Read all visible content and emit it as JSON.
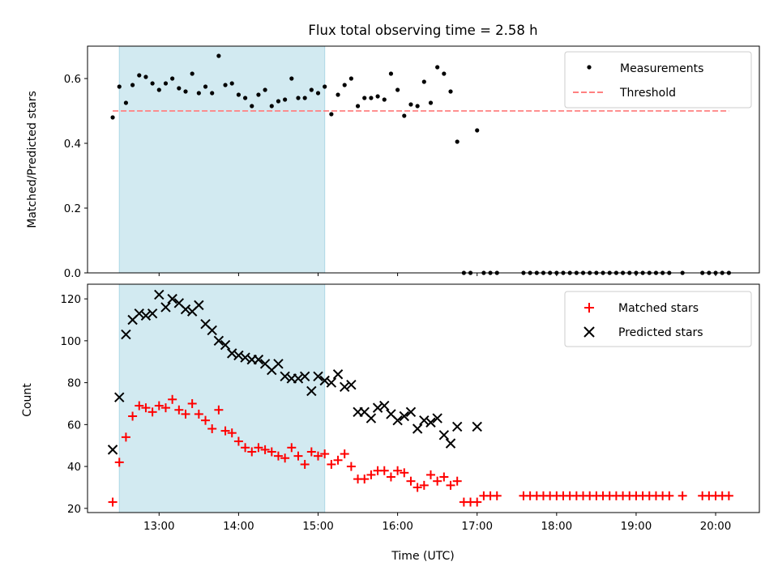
{
  "chart_data": [
    {
      "type": "scatter",
      "title": "Flux total observing time = 2.58 h",
      "xlabel": "",
      "ylabel": "Matched/Predicted stars",
      "ylim": [
        0,
        0.7
      ],
      "yticks": [
        0.0,
        0.2,
        0.4,
        0.6
      ],
      "ytick_labels": [
        "0.0",
        "0.2",
        "0.4",
        "0.6"
      ],
      "xlim": [
        "12:06",
        "20:33"
      ],
      "xticks": [
        "13:00",
        "14:00",
        "15:00",
        "16:00",
        "17:00",
        "18:00",
        "19:00",
        "20:00"
      ],
      "shaded_span": [
        "12:30",
        "15:05"
      ],
      "shaded_color": "#add8e6",
      "legend_position": "upper right",
      "series": [
        {
          "name": "Measurements",
          "marker": "dot",
          "color": "#000000",
          "x": [
            "12:25",
            "12:30",
            "12:35",
            "12:40",
            "12:45",
            "12:50",
            "12:55",
            "13:00",
            "13:05",
            "13:10",
            "13:15",
            "13:20",
            "13:25",
            "13:30",
            "13:35",
            "13:40",
            "13:45",
            "13:50",
            "13:55",
            "14:00",
            "14:05",
            "14:10",
            "14:15",
            "14:20",
            "14:25",
            "14:30",
            "14:35",
            "14:40",
            "14:45",
            "14:50",
            "14:55",
            "15:00",
            "15:05",
            "15:10",
            "15:15",
            "15:20",
            "15:25",
            "15:30",
            "15:35",
            "15:40",
            "15:45",
            "15:50",
            "15:55",
            "16:00",
            "16:05",
            "16:10",
            "16:15",
            "16:20",
            "16:25",
            "16:30",
            "16:35",
            "16:40",
            "16:45",
            "16:50",
            "16:55",
            "17:00",
            "17:05",
            "17:10",
            "17:15",
            "17:35",
            "17:40",
            "17:45",
            "17:50",
            "17:55",
            "18:00",
            "18:05",
            "18:10",
            "18:15",
            "18:20",
            "18:25",
            "18:30",
            "18:35",
            "18:40",
            "18:45",
            "18:50",
            "18:55",
            "19:00",
            "19:05",
            "19:10",
            "19:15",
            "19:20",
            "19:25",
            "19:35",
            "19:50",
            "19:55",
            "20:00",
            "20:05",
            "20:10"
          ],
          "y": [
            0.48,
            0.575,
            0.525,
            0.58,
            0.61,
            0.605,
            0.585,
            0.565,
            0.585,
            0.6,
            0.57,
            0.56,
            0.615,
            0.555,
            0.575,
            0.555,
            0.67,
            0.58,
            0.585,
            0.55,
            0.54,
            0.515,
            0.55,
            0.565,
            0.515,
            0.53,
            0.535,
            0.6,
            0.54,
            0.54,
            0.565,
            0.555,
            0.575,
            0.49,
            0.55,
            0.58,
            0.6,
            0.515,
            0.54,
            0.54,
            0.545,
            0.535,
            0.615,
            0.565,
            0.485,
            0.52,
            0.515,
            0.59,
            0.525,
            0.635,
            0.615,
            0.56,
            0.405,
            0.0,
            0.0,
            0.44,
            0.0,
            0.0,
            0.0,
            0.0,
            0.0,
            0.0,
            0.0,
            0.0,
            0.0,
            0.0,
            0.0,
            0.0,
            0.0,
            0.0,
            0.0,
            0.0,
            0.0,
            0.0,
            0.0,
            0.0,
            0.0,
            0.0,
            0.0,
            0.0,
            0.0,
            0.0,
            0.0,
            0.0,
            0.0,
            0.0,
            0.0,
            0.0
          ]
        },
        {
          "name": "Threshold",
          "marker": "dashed-line",
          "color": "#ff8080",
          "x": [
            "12:25",
            "20:10"
          ],
          "y": [
            0.5,
            0.5
          ]
        }
      ]
    },
    {
      "type": "scatter",
      "title": "",
      "xlabel": "Time (UTC)",
      "ylabel": "Count",
      "ylim": [
        18,
        127
      ],
      "yticks": [
        20,
        40,
        60,
        80,
        100,
        120
      ],
      "ytick_labels": [
        "20",
        "40",
        "60",
        "80",
        "100",
        "120"
      ],
      "xlim": [
        "12:06",
        "20:33"
      ],
      "xticks": [
        "13:00",
        "14:00",
        "15:00",
        "16:00",
        "17:00",
        "18:00",
        "19:00",
        "20:00"
      ],
      "xtick_labels": [
        "13:00",
        "14:00",
        "15:00",
        "16:00",
        "17:00",
        "18:00",
        "19:00",
        "20:00"
      ],
      "shaded_span": [
        "12:30",
        "15:05"
      ],
      "shaded_color": "#add8e6",
      "legend_position": "upper right",
      "series": [
        {
          "name": "Matched stars",
          "marker": "plus",
          "color": "#ff0000",
          "x": [
            "12:25",
            "12:30",
            "12:35",
            "12:40",
            "12:45",
            "12:50",
            "12:55",
            "13:00",
            "13:05",
            "13:10",
            "13:15",
            "13:20",
            "13:25",
            "13:30",
            "13:35",
            "13:40",
            "13:45",
            "13:50",
            "13:55",
            "14:00",
            "14:05",
            "14:10",
            "14:15",
            "14:20",
            "14:25",
            "14:30",
            "14:35",
            "14:40",
            "14:45",
            "14:50",
            "14:55",
            "15:00",
            "15:05",
            "15:10",
            "15:15",
            "15:20",
            "15:25",
            "15:30",
            "15:35",
            "15:40",
            "15:45",
            "15:50",
            "15:55",
            "16:00",
            "16:05",
            "16:10",
            "16:15",
            "16:20",
            "16:25",
            "16:30",
            "16:35",
            "16:40",
            "16:45",
            "16:50",
            "16:55",
            "17:00",
            "17:05",
            "17:10",
            "17:15",
            "17:35",
            "17:40",
            "17:45",
            "17:50",
            "17:55",
            "18:00",
            "18:05",
            "18:10",
            "18:15",
            "18:20",
            "18:25",
            "18:30",
            "18:35",
            "18:40",
            "18:45",
            "18:50",
            "18:55",
            "19:00",
            "19:05",
            "19:10",
            "19:15",
            "19:20",
            "19:25",
            "19:35",
            "19:50",
            "19:55",
            "20:00",
            "20:05",
            "20:10"
          ],
          "y": [
            23,
            42,
            54,
            64,
            69,
            68,
            66,
            69,
            68,
            72,
            67,
            65,
            70,
            65,
            62,
            58,
            67,
            57,
            56,
            52,
            49,
            47,
            49,
            48,
            47,
            45,
            44,
            49,
            45,
            41,
            47,
            45,
            46,
            41,
            43,
            46,
            40,
            34,
            34,
            36,
            38,
            38,
            35,
            38,
            37,
            33,
            30,
            31,
            36,
            33,
            35,
            31,
            33,
            23,
            23,
            23,
            26,
            26,
            26,
            26,
            26,
            26,
            26,
            26,
            26,
            26,
            26,
            26,
            26,
            26,
            26,
            26,
            26,
            26,
            26,
            26,
            26,
            26,
            26,
            26,
            26,
            26,
            26,
            26,
            26,
            26,
            26,
            26
          ]
        },
        {
          "name": "Predicted stars",
          "marker": "x",
          "color": "#000000",
          "x": [
            "12:25",
            "12:30",
            "12:35",
            "12:40",
            "12:45",
            "12:50",
            "12:55",
            "13:00",
            "13:05",
            "13:10",
            "13:15",
            "13:20",
            "13:25",
            "13:30",
            "13:35",
            "13:40",
            "13:45",
            "13:50",
            "13:55",
            "14:00",
            "14:05",
            "14:10",
            "14:15",
            "14:20",
            "14:25",
            "14:30",
            "14:35",
            "14:40",
            "14:45",
            "14:50",
            "14:55",
            "15:00",
            "15:05",
            "15:10",
            "15:15",
            "15:20",
            "15:25",
            "15:30",
            "15:35",
            "15:40",
            "15:45",
            "15:50",
            "15:55",
            "16:00",
            "16:05",
            "16:10",
            "16:15",
            "16:20",
            "16:25",
            "16:30",
            "16:35",
            "16:40",
            "16:45",
            "17:00"
          ],
          "y": [
            48,
            73,
            103,
            110,
            113,
            112,
            113,
            122,
            116,
            120,
            118,
            115,
            114,
            117,
            108,
            105,
            100,
            98,
            94,
            93,
            92,
            91,
            91,
            89,
            86,
            89,
            83,
            82,
            82,
            83,
            76,
            83,
            81,
            80,
            84,
            78,
            79,
            66,
            66,
            63,
            68,
            69,
            65,
            62,
            64,
            66,
            58,
            62,
            61,
            63,
            55,
            51,
            59,
            59
          ]
        }
      ]
    }
  ]
}
